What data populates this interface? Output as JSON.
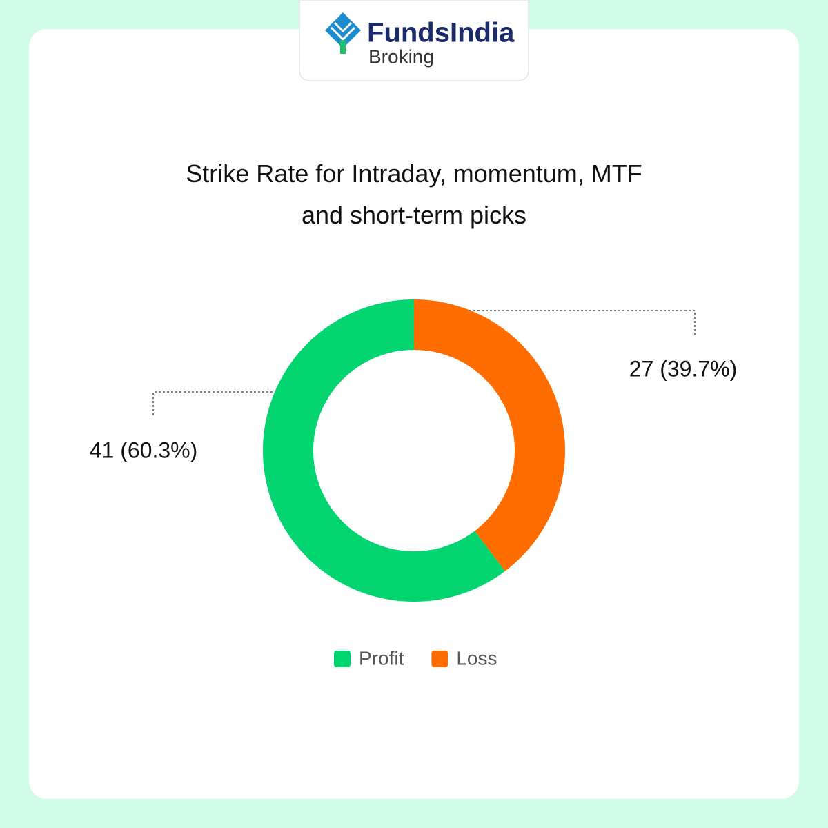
{
  "logo": {
    "brand": "FundsIndia",
    "sub": "Broking"
  },
  "chart_data": {
    "type": "donut",
    "title": "Strike Rate for Intraday, momentum, MTF and short-term picks",
    "categories": [
      "Profit",
      "Loss"
    ],
    "values": [
      41,
      27
    ],
    "value_labels": [
      "41 (60.3%)",
      "27 (39.7%)"
    ],
    "colors": [
      "#02d46f",
      "#ff6d00"
    ],
    "legend": "bottom"
  }
}
